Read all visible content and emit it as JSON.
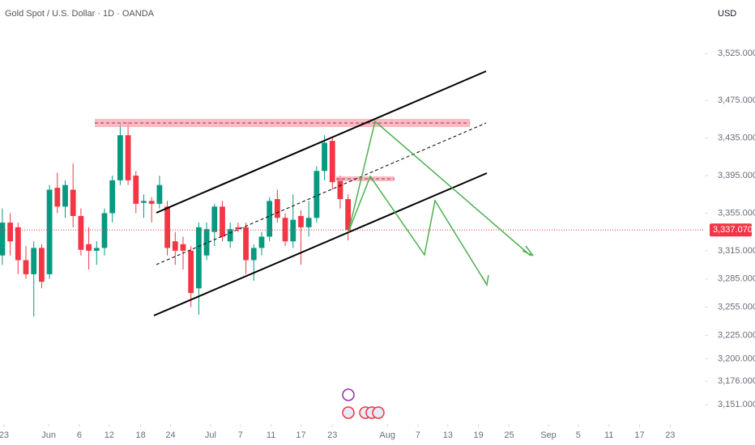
{
  "chart_data": {
    "type": "candlestick",
    "title": "Gold Spot / U.S. Dollar · 1D · OANDA",
    "currency": "USD",
    "up_color": "#089981",
    "down_color": "#f23645",
    "open": [
      3310,
      3345,
      3340,
      3305,
      3290,
      3318,
      3290,
      3382,
      3362,
      3380,
      3352,
      3322,
      3315,
      3318,
      3355,
      3390,
      3438,
      3395,
      3366,
      3368,
      3365,
      3362,
      3325,
      3322,
      3315,
      3275,
      3310,
      3335,
      3362,
      3325,
      3340,
      3340,
      3305,
      3318,
      3330,
      3370,
      3350,
      3325,
      3352,
      3340,
      3350,
      3400,
      3432,
      3392,
      3370
    ],
    "high": [
      3360,
      3355,
      3345,
      3320,
      3325,
      3322,
      3385,
      3398,
      3390,
      3408,
      3360,
      3340,
      3325,
      3360,
      3395,
      3450,
      3452,
      3400,
      3375,
      3372,
      3395,
      3368,
      3335,
      3330,
      3320,
      3345,
      3345,
      3365,
      3368,
      3345,
      3345,
      3345,
      3322,
      3335,
      3372,
      3380,
      3355,
      3375,
      3358,
      3368,
      3405,
      3438,
      3435,
      3395,
      3375
    ],
    "low": [
      3300,
      3310,
      3290,
      3285,
      3245,
      3275,
      3285,
      3355,
      3350,
      3340,
      3310,
      3295,
      3300,
      3310,
      3345,
      3385,
      3385,
      3355,
      3350,
      3345,
      3360,
      3310,
      3300,
      3295,
      3255,
      3247,
      3305,
      3320,
      3325,
      3318,
      3335,
      3290,
      3283,
      3310,
      3325,
      3345,
      3320,
      3318,
      3300,
      3330,
      3345,
      3390,
      3380,
      3360,
      3326
    ],
    "close": [
      3345,
      3325,
      3305,
      3290,
      3318,
      3282,
      3380,
      3362,
      3385,
      3352,
      3316,
      3315,
      3318,
      3355,
      3390,
      3438,
      3390,
      3365,
      3368,
      3365,
      3385,
      3318,
      3315,
      3315,
      3270,
      3340,
      3338,
      3362,
      3330,
      3338,
      3338,
      3305,
      3318,
      3330,
      3368,
      3350,
      3325,
      3348,
      3340,
      3350,
      3400,
      3430,
      3388,
      3370,
      3337.07
    ],
    "last_price": {
      "value": 3337.07,
      "label": "3,337.070"
    },
    "ylim": [
      3134,
      3582
    ],
    "yticks": [
      {
        "value": 3525,
        "label": "3,525.000"
      },
      {
        "value": 3475,
        "label": "3,475.000"
      },
      {
        "value": 3435,
        "label": "3,435.000"
      },
      {
        "value": 3395,
        "label": "3,395.000"
      },
      {
        "value": 3355,
        "label": "3,355.000"
      },
      {
        "value": 3315,
        "label": "3,315.000"
      },
      {
        "value": 3285,
        "label": "3,285.000"
      },
      {
        "value": 3255,
        "label": "3,255.000"
      },
      {
        "value": 3225,
        "label": "3,225.000"
      },
      {
        "value": 3200,
        "label": "3,200.000"
      },
      {
        "value": 3176,
        "label": "3,176.000"
      },
      {
        "value": 3151,
        "label": "3,151.000"
      }
    ],
    "xlim": [
      -0.3,
      89.4
    ],
    "xticks": [
      {
        "value": 0.2,
        "label": "23"
      },
      {
        "value": 5.9,
        "label": "Jun"
      },
      {
        "value": 9.8,
        "label": "6"
      },
      {
        "value": 13.6,
        "label": "12"
      },
      {
        "value": 17.6,
        "label": "18"
      },
      {
        "value": 21.4,
        "label": "24"
      },
      {
        "value": 26.5,
        "label": "Jul"
      },
      {
        "value": 30.3,
        "label": "7"
      },
      {
        "value": 34.2,
        "label": "11"
      },
      {
        "value": 38.0,
        "label": "17"
      },
      {
        "value": 42.0,
        "label": "23"
      },
      {
        "value": 49.0,
        "label": "Aug"
      },
      {
        "value": 52.9,
        "label": "7"
      },
      {
        "value": 56.7,
        "label": "13"
      },
      {
        "value": 60.6,
        "label": "19"
      },
      {
        "value": 64.5,
        "label": "25"
      },
      {
        "value": 69.5,
        "label": "Sep"
      },
      {
        "value": 73.3,
        "label": "5"
      },
      {
        "value": 77.2,
        "label": "11"
      },
      {
        "value": 81.1,
        "label": "17"
      },
      {
        "value": 85.0,
        "label": "23"
      }
    ]
  }
}
